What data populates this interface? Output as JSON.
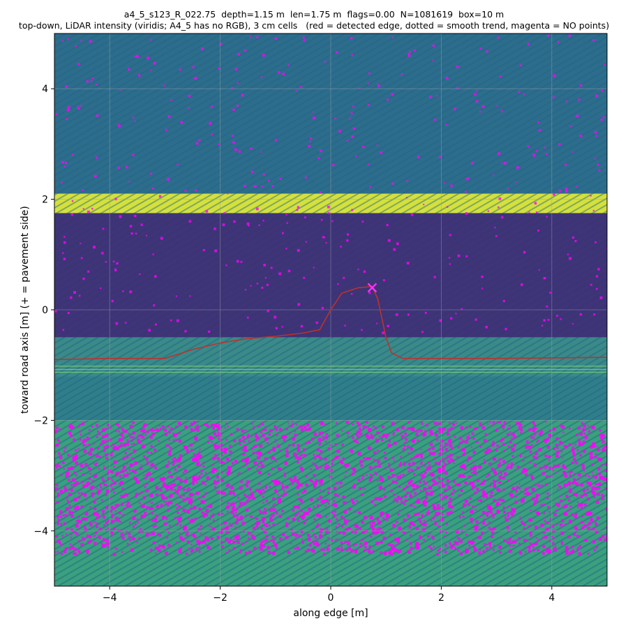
{
  "title_line1": "a4_5_s123_R_022.75  depth=1.15 m  len=1.75 m  flags=0.00  N=1081619  box=10 m",
  "title_line2": "top-down, LiDAR intensity (viridis; A4_5 has no RGB), 3 cm cells   (red = detected edge, dotted = smooth trend, magenta = NO points)",
  "colors": {
    "edge_line": "#c0302b",
    "marker": "#ff33ff",
    "no_points": "#ff00ff",
    "grid": "#9aa0a6",
    "band_asphalt_far": "#2c6a8a",
    "band_road_dark": "#3b2f73",
    "band_marking": "#d6e23a",
    "band_curb": "#2f8a86",
    "band_pavement": "#3ca37c"
  },
  "chart_data": {
    "type": "heatmap",
    "xlabel": "along edge [m]",
    "ylabel": "toward road axis [m]  (+ = pavement side)",
    "xlim": [
      -5,
      5
    ],
    "ylim": [
      -5,
      5
    ],
    "x_ticks": [
      -4,
      -2,
      0,
      2,
      4
    ],
    "y_ticks": [
      -4,
      -2,
      0,
      2,
      4
    ],
    "x_tick_labels": [
      "−4",
      "−2",
      "0",
      "2",
      "4"
    ],
    "y_tick_labels": [
      "−4",
      "−2",
      "0",
      "2",
      "4"
    ],
    "grid": true,
    "colormap": "viridis",
    "bands": [
      {
        "name": "far surface",
        "y0": 2.1,
        "y1": 5.0,
        "color": "#2d6d8c"
      },
      {
        "name": "lane marking",
        "y0": 1.75,
        "y1": 2.1,
        "color": "#d4e13c"
      },
      {
        "name": "road surface",
        "y0": -0.5,
        "y1": 1.75,
        "color": "#3b3576"
      },
      {
        "name": "edge strip",
        "y0": -1.2,
        "y1": -0.5,
        "color": "#3a8a88"
      },
      {
        "name": "near surface",
        "y0": -2.0,
        "y1": -1.2,
        "color": "#2f7f8a"
      },
      {
        "name": "pavement",
        "y0": -5.0,
        "y1": -2.0,
        "color": "#3aa07e"
      }
    ],
    "detected_edge": {
      "x": [
        -5.0,
        -4.5,
        -4.0,
        -3.5,
        -3.0,
        -2.5,
        -2.0,
        -1.5,
        -1.0,
        -0.5,
        -0.2,
        0.0,
        0.2,
        0.5,
        0.75,
        0.85,
        1.0,
        1.1,
        1.3,
        2.0,
        3.0,
        4.0,
        5.0
      ],
      "y": [
        -0.9,
        -0.89,
        -0.88,
        -0.88,
        -0.88,
        -0.72,
        -0.6,
        -0.52,
        -0.48,
        -0.42,
        -0.36,
        0.0,
        0.3,
        0.4,
        0.42,
        0.2,
        -0.5,
        -0.78,
        -0.88,
        -0.88,
        -0.88,
        -0.87,
        -0.86
      ]
    },
    "marker": {
      "x": 0.75,
      "y": 0.4,
      "symbol": "x"
    }
  }
}
